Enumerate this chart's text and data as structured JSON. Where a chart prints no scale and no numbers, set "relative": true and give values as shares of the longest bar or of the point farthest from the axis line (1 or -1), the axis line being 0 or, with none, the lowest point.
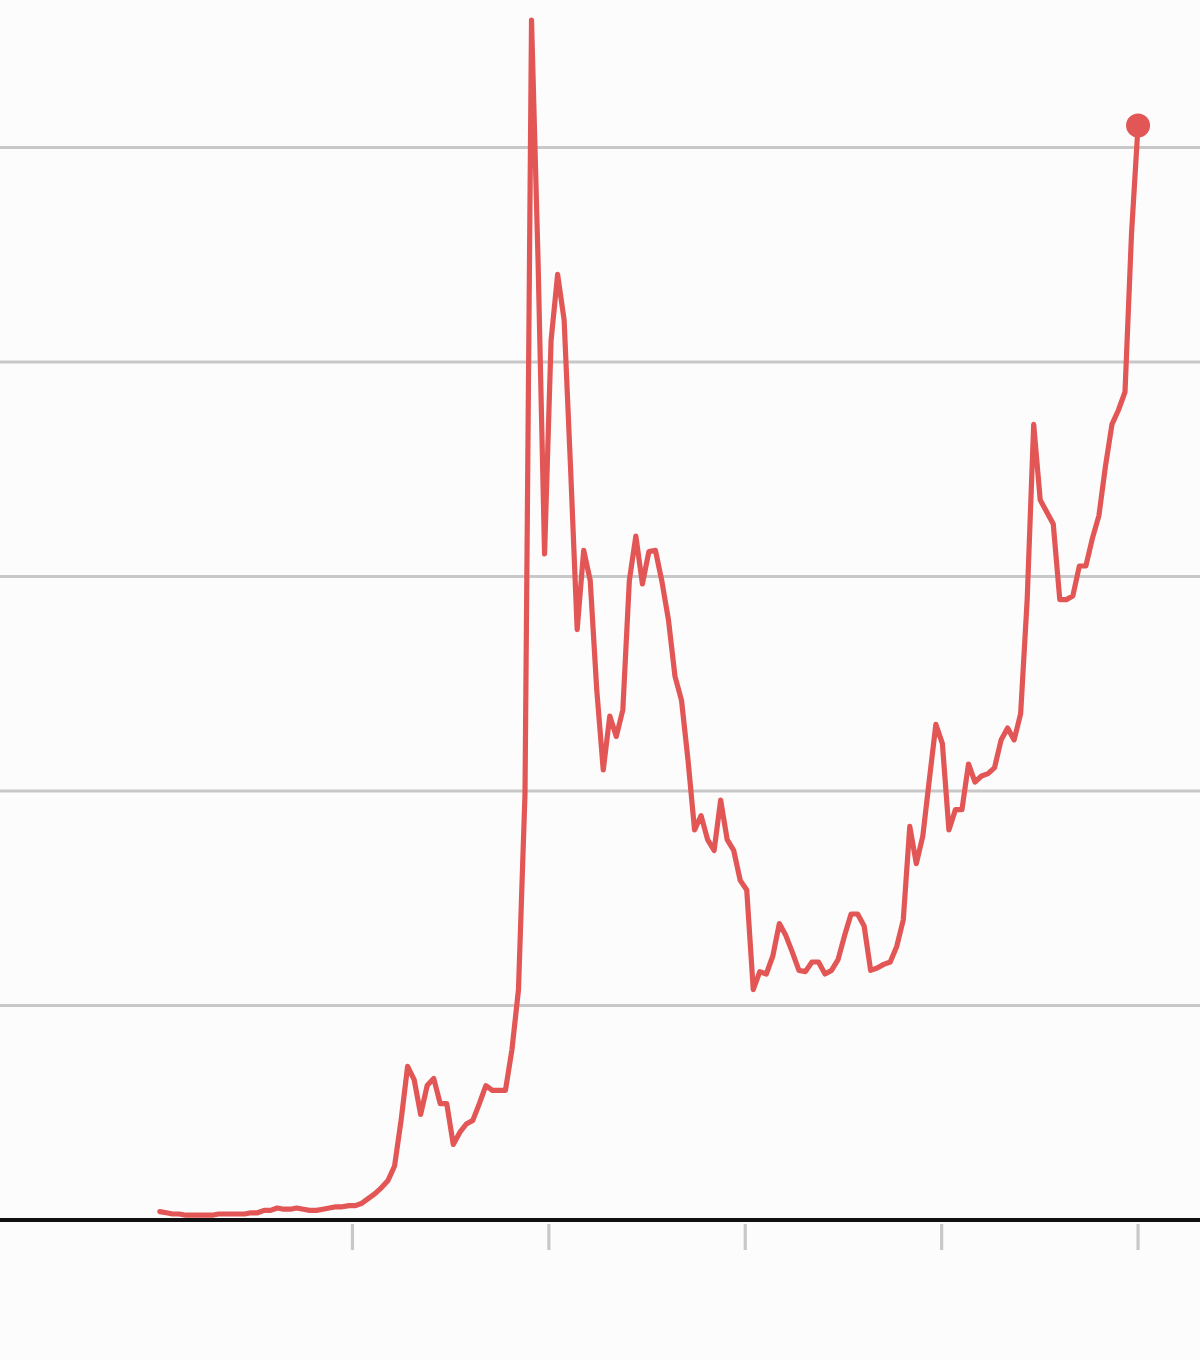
{
  "chart_data": {
    "type": "line",
    "relative": true,
    "categories": [
      null,
      null,
      null,
      null,
      null,
      null,
      null,
      null,
      null,
      null,
      null,
      null,
      null,
      null,
      null,
      null,
      null,
      null,
      null,
      null,
      null,
      null,
      null,
      null,
      null,
      null,
      null,
      null,
      null,
      null,
      null,
      null,
      null,
      null,
      null,
      null,
      null,
      null,
      null,
      null,
      null,
      null,
      null,
      null,
      null,
      null,
      null,
      null,
      null,
      null,
      null,
      null,
      null,
      null,
      null,
      null,
      null,
      null,
      null,
      null,
      null,
      null,
      null,
      null,
      null,
      null,
      null,
      null,
      null,
      null,
      null,
      null,
      null,
      null,
      null,
      null,
      null,
      null,
      null,
      null,
      null,
      null,
      null,
      null,
      null,
      null,
      null,
      null,
      null,
      null,
      null,
      null,
      null,
      null,
      null,
      null,
      null,
      null,
      null,
      null,
      null,
      null,
      null,
      null,
      null,
      null,
      null,
      null,
      null,
      null,
      null,
      null,
      null,
      null,
      null,
      null,
      null,
      null,
      null,
      null,
      null,
      null,
      null,
      null,
      null,
      null,
      null,
      null,
      null,
      null,
      null,
      null,
      null,
      null,
      null,
      null,
      null,
      null,
      null,
      null,
      null,
      null,
      null,
      null,
      null,
      null,
      null,
      null,
      null,
      null,
      null,
      null,
      null,
      null,
      null,
      null,
      null,
      null,
      null,
      null,
      null,
      null,
      null,
      null,
      null,
      null,
      null,
      null,
      null,
      null,
      null,
      null,
      null,
      null,
      null,
      null,
      null,
      null,
      null,
      null,
      null,
      null,
      null,
      null
    ],
    "series": [
      {
        "color": "#e35656",
        "values": [
          null,
          null,
          null,
          null,
          null,
          null,
          null,
          null,
          null,
          null,
          null,
          null,
          null,
          null,
          null,
          null,
          null,
          null,
          null,
          null,
          null,
          null,
          null,
          null,
          0.007,
          0.006,
          0.005,
          0.005,
          0.004,
          0.004,
          0.004,
          0.004,
          0.004,
          0.005,
          0.005,
          0.005,
          0.005,
          0.005,
          0.006,
          0.006,
          0.008,
          0.008,
          0.01,
          0.009,
          0.009,
          0.01,
          0.009,
          0.008,
          0.008,
          0.009,
          0.01,
          0.011,
          0.011,
          0.012,
          0.012,
          0.014,
          0.018,
          0.022,
          0.027,
          0.033,
          0.045,
          0.083,
          0.128,
          0.117,
          0.088,
          0.112,
          0.118,
          0.097,
          0.097,
          0.063,
          0.073,
          0.08,
          0.083,
          0.097,
          0.112,
          0.108,
          0.108,
          0.108,
          0.142,
          0.192,
          0.355,
          1,
          0.8,
          0.555,
          0.733,
          0.788,
          0.75,
          0.625,
          0.492,
          0.558,
          0.533,
          0.442,
          0.375,
          0.42,
          0.403,
          0.425,
          0.533,
          0.57,
          0.53,
          0.557,
          0.558,
          0.532,
          0.5,
          0.453,
          0.433,
          0.383,
          0.325,
          0.337,
          0.317,
          0.308,
          0.35,
          0.317,
          0.308,
          0.283,
          0.275,
          0.192,
          0.207,
          0.205,
          0.22,
          0.247,
          0.237,
          0.223,
          0.208,
          0.207,
          0.215,
          0.215,
          0.205,
          0.208,
          0.217,
          0.237,
          0.255,
          0.255,
          0.245,
          0.208,
          0.21,
          0.213,
          0.215,
          0.228,
          0.25,
          0.328,
          0.297,
          0.32,
          0.367,
          0.413,
          0.397,
          0.325,
          0.342,
          0.342,
          0.38,
          0.365,
          0.37,
          0.372,
          0.377,
          0.4,
          0.41,
          0.4,
          0.422,
          0.517,
          0.663,
          0.6,
          0.59,
          0.58,
          0.517,
          0.517,
          0.52,
          0.545,
          0.545,
          0.568,
          0.587,
          0.628,
          0.663,
          0.675,
          0.69,
          0.822,
          0.912,
          null,
          null,
          null,
          null,
          null,
          null,
          null,
          null,
          null
        ]
      },
      {
        "color": "#e35656",
        "marker": "circle",
        "values": [
          null,
          null,
          null,
          null,
          null,
          null,
          null,
          null,
          null,
          null,
          null,
          null,
          null,
          null,
          null,
          null,
          null,
          null,
          null,
          null,
          null,
          null,
          null,
          null,
          null,
          null,
          null,
          null,
          null,
          null,
          null,
          null,
          null,
          null,
          null,
          null,
          null,
          null,
          null,
          null,
          null,
          null,
          null,
          null,
          null,
          null,
          null,
          null,
          null,
          null,
          null,
          null,
          null,
          null,
          null,
          null,
          null,
          null,
          null,
          null,
          null,
          null,
          null,
          null,
          null,
          null,
          null,
          null,
          null,
          null,
          null,
          null,
          null,
          null,
          null,
          null,
          null,
          null,
          null,
          null,
          null,
          null,
          null,
          null,
          null,
          null,
          null,
          null,
          null,
          null,
          null,
          null,
          null,
          null,
          null,
          null,
          null,
          null,
          null,
          null,
          null,
          null,
          null,
          null,
          null,
          null,
          null,
          null,
          null,
          null,
          null,
          null,
          null,
          null,
          null,
          null,
          null,
          null,
          null,
          null,
          null,
          null,
          null,
          null,
          null,
          null,
          null,
          null,
          null,
          null,
          null,
          null,
          null,
          null,
          null,
          null,
          null,
          null,
          null,
          null,
          null,
          null,
          null,
          null,
          null,
          null,
          null,
          null,
          null,
          null,
          null,
          null,
          null,
          null,
          null,
          null,
          null,
          null,
          null,
          null,
          null,
          null,
          null,
          null,
          null,
          null,
          null,
          null,
          null,
          null,
          null,
          null,
          null,
          null,
          0.912,
          null,
          null,
          null,
          null,
          null,
          null,
          null,
          null,
          null
        ]
      }
    ],
    "grid": "y"
  }
}
